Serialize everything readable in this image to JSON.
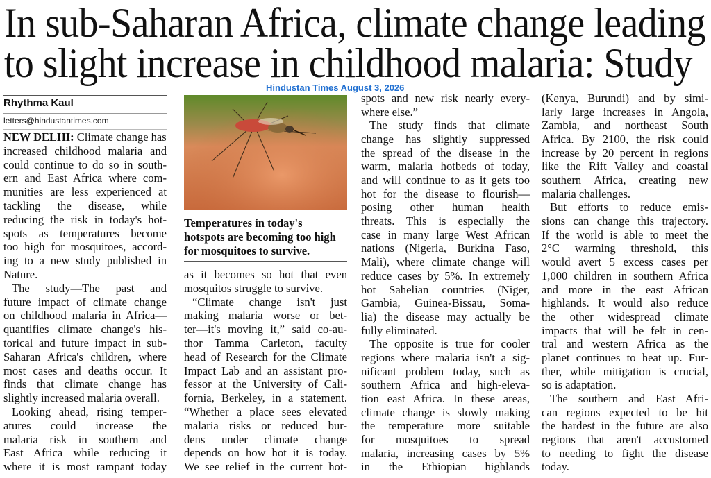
{
  "headline": {
    "lines": [
      "In sub-Saharan Africa, climate change leading",
      "to slight increase in childhood malaria: Study"
    ]
  },
  "stamp": "Hindustan Times August 3, 2026",
  "byline": {
    "author": "Rhythma Kaul",
    "email": "letters@hindustantimes.com"
  },
  "columns": [
    {
      "paragraphs": [
        {
          "dateline": "NEW DELHI:",
          "lines": [
            "Climate change has",
            "increased childhood malaria and",
            "could continue to do so in south-",
            "ern and East Africa where com-",
            "munities are less experienced at",
            "tackling the disease, while",
            "reducing the risk in today's hot-",
            "spots as temperatures become",
            "too high for mosquitoes, accord-",
            "ing to a new study published in",
            "Nature."
          ]
        },
        {
          "lines": [
            "The study—The past and",
            "future impact of climate change",
            "on childhood malaria in Africa—",
            "quantifies climate change's his-",
            "torical and future impact in sub-",
            "Saharan Africa's children, where",
            "most cases and deaths occur. It",
            "finds that climate change has",
            "slightly increased malaria overall."
          ]
        },
        {
          "lines": [
            "Looking ahead, rising temper-",
            "atures could increase the",
            "malaria risk in southern and",
            "East Africa while reducing it",
            "where it is most rampant today"
          ]
        }
      ]
    },
    {
      "caption": {
        "lines": [
          "Temperatures in today's",
          "hotspots are becoming too high",
          "for mosquitoes to survive."
        ]
      },
      "paragraphs": [
        {
          "lines": [
            "as it becomes so hot that even",
            "mosquitos struggle to survive."
          ]
        },
        {
          "lines": [
            "“Climate change isn't just",
            "making malaria worse or bet-",
            "ter—it's moving it,” said co-au-",
            "thor Tamma Carleton, faculty",
            "head of Research for the Climate",
            "Impact Lab and an assistant pro-",
            "fessor at the University of Cali-",
            "fornia, Berkeley, in a statement.",
            "“Whether a place sees elevated",
            "malaria risks or reduced bur-",
            "dens under climate change",
            "depends on how hot it is today.",
            "We see relief in the current hot-"
          ]
        }
      ]
    },
    {
      "paragraphs": [
        {
          "lines": [
            "spots and new risk nearly every-",
            "where else.”"
          ]
        },
        {
          "lines": [
            "The study finds that climate",
            "change has slightly suppressed",
            "the spread of the disease in the",
            "warm, malaria hotbeds of today,",
            "and will continue to as it gets too",
            "hot for the disease to flourish—",
            "posing other human health",
            "threats. This is especially the",
            "case in many large West African",
            "nations (Nigeria, Burkina Faso,",
            "Mali), where climate change will",
            "reduce cases by 5%. In extremely",
            "hot Sahelian countries (Niger,",
            "Gambia, Guinea-Bissau, Soma-",
            "lia) the disease may actually be",
            "fully eliminated."
          ]
        },
        {
          "lines": [
            "The opposite is true for cooler",
            "regions where malaria isn't a sig-",
            "nificant problem today, such as",
            "southern Africa and high-eleva-",
            "tion east Africa. In these areas,",
            "climate change is slowly making",
            "the temperature more suitable",
            "for mosquitoes to spread",
            "malaria, increasing cases by 5%",
            "in the Ethiopian highlands"
          ]
        }
      ]
    },
    {
      "paragraphs": [
        {
          "lines": [
            "(Kenya, Burundi) and by simi-",
            "larly large increases in Angola,",
            "Zambia, and northeast South",
            "Africa. By 2100, the risk could",
            "increase by 20 percent in regions",
            "like the Rift Valley and coastal",
            "southern Africa, creating new",
            "malaria challenges."
          ]
        },
        {
          "lines": [
            "But efforts to reduce emis-",
            "sions can change this trajectory.",
            "If the world is able to meet the",
            "2°C warming threshold, this",
            "would avert 5 excess cases per",
            "1,000 children in southern Africa",
            "and more in the east African",
            "highlands. It would also reduce",
            "the other widespread climate",
            "impacts that will be felt in cen-",
            "tral and western Africa as the",
            "planet continues to heat up. Fur-",
            "ther, while mitigation is crucial,",
            "so is adaptation."
          ]
        },
        {
          "lines": [
            "The southern and East Afri-",
            "can regions expected to be hit",
            "the hardest in the future are also",
            "regions that aren't accustomed",
            "to needing to fight the disease",
            "today."
          ]
        }
      ]
    }
  ]
}
